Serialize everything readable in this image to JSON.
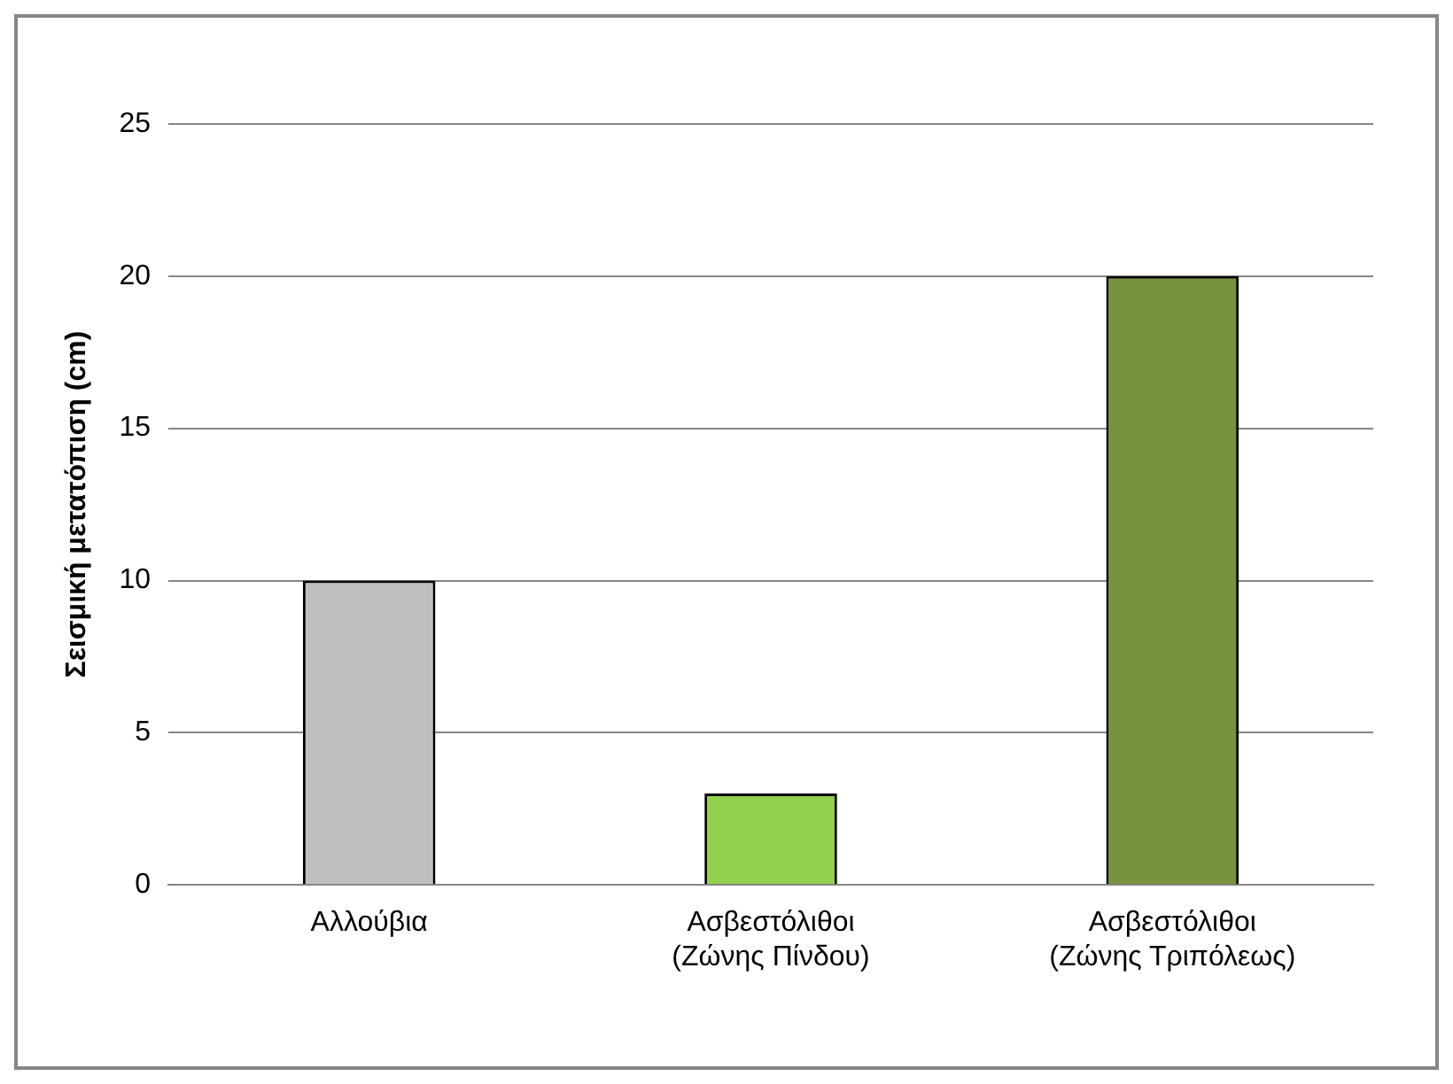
{
  "chart_data": {
    "type": "bar",
    "ylabel": "Σεισμική μετατόπιση (cm)",
    "categories": [
      "Αλλούβια",
      "Ασβεστόλιθοι (Ζώνης Πίνδου)",
      "Ασβεστόλιθοι (Ζώνης Τριπόλεως)"
    ],
    "values": [
      10,
      3,
      20
    ],
    "colors": [
      "#bfbfbf",
      "#92d050",
      "#77933c"
    ],
    "ylim": [
      0,
      25
    ],
    "yticks": [
      0,
      5,
      10,
      15,
      20,
      25
    ],
    "grid": "y",
    "legend": false
  }
}
